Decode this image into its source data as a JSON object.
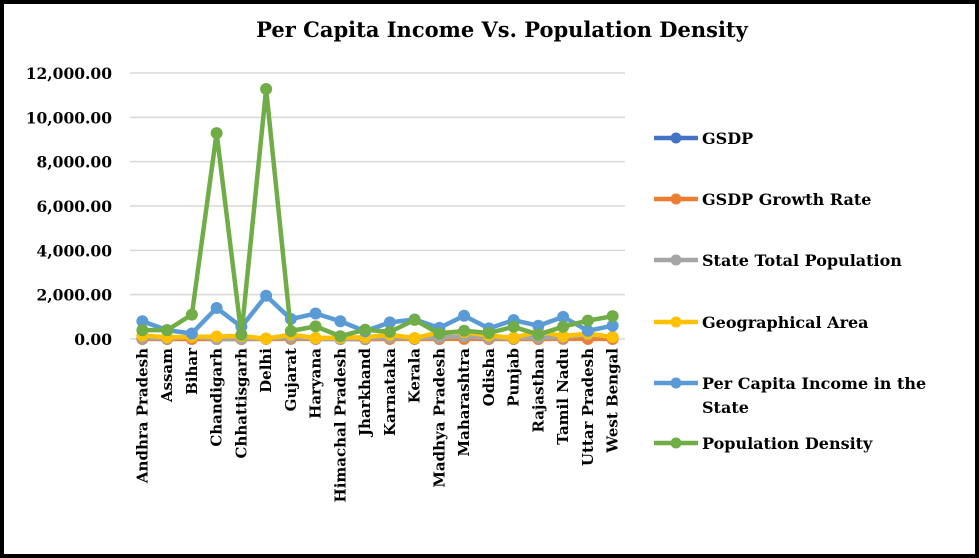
{
  "chart_data": {
    "type": "line",
    "title": "Per Capita Income Vs. Population Density",
    "xlabel": "",
    "ylabel": "",
    "ylim": [
      0,
      12000
    ],
    "yticks": [
      0,
      2000,
      4000,
      6000,
      8000,
      10000,
      12000
    ],
    "ytick_labels": [
      "0.00",
      "2,000.00",
      "4,000.00",
      "6,000.00",
      "8,000.00",
      "10,000.00",
      "12,000.00"
    ],
    "grid": true,
    "legend_position": "right",
    "categories": [
      "Andhra Pradesh",
      "Assam",
      "Bihar",
      "Chandigarh",
      "Chhattisgarh",
      "Delhi",
      "Gujarat",
      "Haryana",
      "Himachal Pradesh",
      "Jharkhand",
      "Karnataka",
      "Kerala",
      "Madhya Pradesh",
      "Maharashtra",
      "Odisha",
      "Punjab",
      "Rajasthan",
      "Tamil Nadu",
      "Uttar Pradesh",
      "West Bengal"
    ],
    "series": [
      {
        "name": "GSDP",
        "color": "#4472C4",
        "values": [
          8,
          3,
          4,
          0.3,
          2,
          5,
          11,
          5,
          1,
          2,
          10,
          5,
          5,
          20,
          3,
          4,
          6,
          12,
          11,
          8
        ]
      },
      {
        "name": "GSDP Growth Rate",
        "color": "#ED7D31",
        "values": [
          10,
          8,
          10,
          8,
          7,
          8,
          9,
          8,
          7,
          8,
          8,
          9,
          9,
          8,
          8,
          7,
          8,
          9,
          7,
          9
        ]
      },
      {
        "name": "State Total Population",
        "color": "#A5A5A5",
        "values": [
          50,
          31,
          104,
          1,
          26,
          17,
          60,
          25,
          7,
          33,
          61,
          33,
          73,
          112,
          42,
          28,
          69,
          72,
          200,
          91
        ]
      },
      {
        "name": "Geographical Area",
        "color": "#FFC000",
        "values": [
          160,
          78,
          94,
          114,
          135,
          15,
          196,
          44,
          56,
          80,
          192,
          39,
          308,
          308,
          156,
          50,
          342,
          130,
          241,
          89
        ]
      },
      {
        "name": "Per Capita Income in the State",
        "color": "#5B9BD5",
        "values": [
          800,
          400,
          250,
          1400,
          550,
          1950,
          900,
          1150,
          800,
          350,
          750,
          880,
          500,
          1050,
          480,
          850,
          600,
          1000,
          370,
          600
        ]
      },
      {
        "name": "Population Density",
        "color": "#70AD47",
        "values": [
          400,
          400,
          1100,
          9290,
          190,
          11280,
          360,
          570,
          125,
          420,
          320,
          860,
          240,
          370,
          270,
          550,
          200,
          555,
          830,
          1030
        ]
      }
    ]
  }
}
